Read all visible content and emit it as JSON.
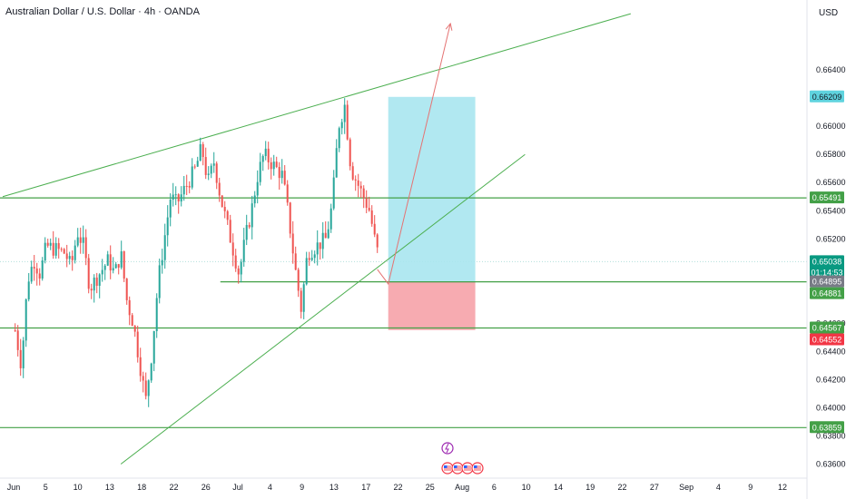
{
  "header": {
    "title": "Australian Dollar / U.S. Dollar · 4h · OANDA",
    "currency": "USD"
  },
  "colors": {
    "up": "#26a69a",
    "down": "#ef5350",
    "trendline": "#4caf50",
    "hline": "#43a047",
    "target_zone": "#a8e6ef",
    "stop_zone": "#f7a6ad",
    "arrow": "#e57373",
    "tag_green": "#43a047",
    "tag_teal": "#089981",
    "tag_red": "#f23645",
    "tag_cyan": "#5fd3de",
    "tag_gray": "#787b86"
  },
  "chart_data": {
    "type": "candlestick",
    "symbol": "AUDUSD",
    "timeframe": "4h",
    "ylim": [
      0.635,
      0.6682
    ],
    "y_ticks": [
      "0.66400",
      "0.66000",
      "0.65800",
      "0.65600",
      "0.65400",
      "0.65200",
      "0.64600",
      "0.64400",
      "0.64200",
      "0.64000",
      "0.63800",
      "0.63600"
    ],
    "y_tick_values": [
      0.664,
      0.66,
      0.658,
      0.656,
      0.654,
      0.652,
      0.646,
      0.644,
      0.642,
      0.64,
      0.638,
      0.636
    ],
    "x_ticks": [
      "Jun",
      "5",
      "10",
      "13",
      "18",
      "22",
      "26",
      "Jul",
      "4",
      "9",
      "13",
      "17",
      "22",
      "25",
      "Aug",
      "6",
      "10",
      "14",
      "19",
      "22",
      "27",
      "Sep",
      "4",
      "9",
      "12"
    ],
    "price_path": [
      [
        "2025-06-01",
        0.6455
      ],
      [
        "2025-06-02",
        0.643
      ],
      [
        "2025-06-03",
        0.649
      ],
      [
        "2025-06-04",
        0.6505
      ],
      [
        "2025-06-05",
        0.6495
      ],
      [
        "2025-06-06",
        0.6515
      ],
      [
        "2025-06-09",
        0.651
      ],
      [
        "2025-06-10",
        0.65
      ],
      [
        "2025-06-11",
        0.6525
      ],
      [
        "2025-06-12",
        0.6515
      ],
      [
        "2025-06-13",
        0.6485
      ],
      [
        "2025-06-16",
        0.6505
      ],
      [
        "2025-06-17",
        0.6495
      ],
      [
        "2025-06-18",
        0.651
      ],
      [
        "2025-06-19",
        0.6475
      ],
      [
        "2025-06-20",
        0.646
      ],
      [
        "2025-06-22",
        0.6405
      ],
      [
        "2025-06-23",
        0.644
      ],
      [
        "2025-06-24",
        0.649
      ],
      [
        "2025-06-25",
        0.652
      ],
      [
        "2025-06-26",
        0.655
      ],
      [
        "2025-06-27",
        0.6545
      ],
      [
        "2025-06-30",
        0.657
      ],
      [
        "2025-07-01",
        0.6585
      ],
      [
        "2025-07-02",
        0.656
      ],
      [
        "2025-07-03",
        0.6575
      ],
      [
        "2025-07-04",
        0.655
      ],
      [
        "2025-07-07",
        0.6495
      ],
      [
        "2025-07-08",
        0.652
      ],
      [
        "2025-07-09",
        0.654
      ],
      [
        "2025-07-10",
        0.6565
      ],
      [
        "2025-07-11",
        0.658
      ],
      [
        "2025-07-14",
        0.6565
      ],
      [
        "2025-07-15",
        0.6535
      ],
      [
        "2025-07-16",
        0.65
      ],
      [
        "2025-07-17",
        0.647
      ],
      [
        "2025-07-18",
        0.651
      ],
      [
        "2025-07-21",
        0.652
      ],
      [
        "2025-07-22",
        0.6545
      ],
      [
        "2025-07-23",
        0.66
      ],
      [
        "2025-07-24",
        0.6615
      ],
      [
        "2025-07-25",
        0.657
      ],
      [
        "2025-07-28",
        0.654
      ],
      [
        "2025-07-29",
        0.6515
      ],
      [
        "2025-07-30",
        0.65
      ]
    ],
    "trendlines": [
      {
        "name": "upper-channel",
        "points": [
          [
            "2025-05-30",
            0.655
          ],
          [
            "2025-09-08",
            0.668
          ]
        ]
      },
      {
        "name": "lower-channel",
        "points": [
          [
            "2025-06-18",
            0.636
          ],
          [
            "2025-08-22",
            0.658
          ]
        ]
      }
    ],
    "horizontal_levels": [
      {
        "name": "level-65491",
        "value": 0.65491
      },
      {
        "name": "level-64895",
        "value": 0.64895,
        "start": "2025-07-04"
      },
      {
        "name": "level-64567",
        "value": 0.64567
      },
      {
        "name": "level-63859",
        "value": 0.63859
      }
    ],
    "position": {
      "start": "2025-07-31",
      "end": "2025-08-14",
      "entry": 0.64895,
      "target": 0.66209,
      "stop": 0.64552
    },
    "projection_arrow": {
      "from": [
        "2025-07-31",
        0.6488
      ],
      "to": [
        "2025-08-10",
        0.6673
      ]
    },
    "price_tags": [
      {
        "label": "0.66209",
        "value": 0.66209,
        "style": "cyan"
      },
      {
        "label": "0.65491",
        "value": 0.65491,
        "style": "green"
      },
      {
        "label": "0.65038",
        "value": 0.65038,
        "style": "teal",
        "sublabel": "01:14:53"
      },
      {
        "label": "0.64895",
        "value": 0.64895,
        "style": "gray"
      },
      {
        "label": "0.64881",
        "value": 0.64881,
        "style": "green"
      },
      {
        "label": "0.64567",
        "value": 0.64567,
        "style": "green"
      },
      {
        "label": "0.64552",
        "value": 0.64552,
        "style": "red"
      },
      {
        "label": "0.63859",
        "value": 0.63859,
        "style": "green"
      }
    ]
  }
}
